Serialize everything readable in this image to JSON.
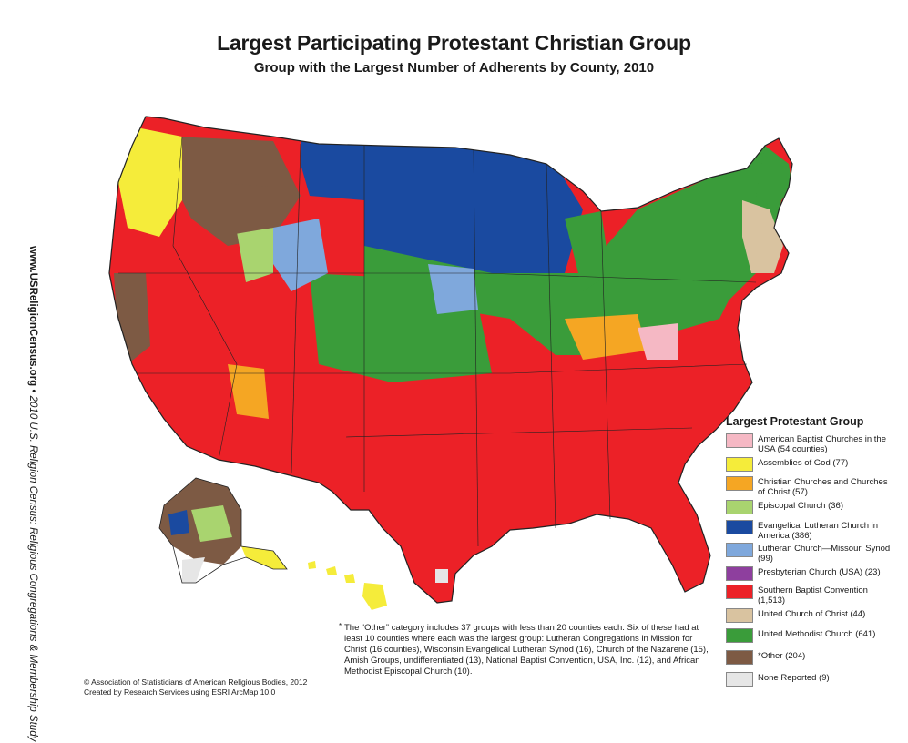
{
  "title": "Largest Participating Protestant Christian Group",
  "subtitle": "Group with the Largest Number of Adherents by County, 2010",
  "side": {
    "url": "www.USReligionCensus.org",
    "bullet": "•",
    "study": "2010 U.S. Religion Census: Religious Congregations & Membership Study"
  },
  "legend": {
    "title": "Largest Protestant Group",
    "items": [
      {
        "label": "American Baptist Churches in the USA (54 counties)",
        "color": "#f5b8c4"
      },
      {
        "label": "Assemblies of God (77)",
        "color": "#f5ec3a"
      },
      {
        "label": "Christian Churches and Churches of Christ (57)",
        "color": "#f5a623"
      },
      {
        "label": "Episcopal Church (36)",
        "color": "#a9d46f"
      },
      {
        "label": "Evangelical Lutheran Church in America (386)",
        "color": "#1a4aa0"
      },
      {
        "label": "Lutheran Church—Missouri Synod (99)",
        "color": "#7fa8dc"
      },
      {
        "label": "Presbyterian Church (USA) (23)",
        "color": "#8e3f9e"
      },
      {
        "label": "Southern Baptist Convention (1,513)",
        "color": "#ec2127"
      },
      {
        "label": "United Church of Christ (44)",
        "color": "#d9c3a0"
      },
      {
        "label": "United Methodist Church (641)",
        "color": "#3a9c3a"
      },
      {
        "label": "*Other (204)",
        "color": "#7d5a44"
      },
      {
        "label": "None Reported (9)",
        "color": "#e6e6e6"
      }
    ]
  },
  "footnote": {
    "star": "*",
    "text": "The “Other” category includes 37 groups with less than 20 counties each. Six of these had at least 10 counties where each was the largest group: Lutheran Congregations in Mission for Christ (16 counties), Wisconsin Evangelical Lutheran Synod (16), Church of the Nazarene (15), Amish Groups, undifferentiated (13), National Baptist Convention, USA, Inc. (12), and African Methodist Episcopal Church (10)."
  },
  "copyright": {
    "line1": "© Association of Statisticians of American Religious Bodies, 2012",
    "line2": "Created by Research Services using ESRI ArcMap 10.0"
  },
  "colors": {
    "state_border": "#222222",
    "background": "#ffffff"
  }
}
